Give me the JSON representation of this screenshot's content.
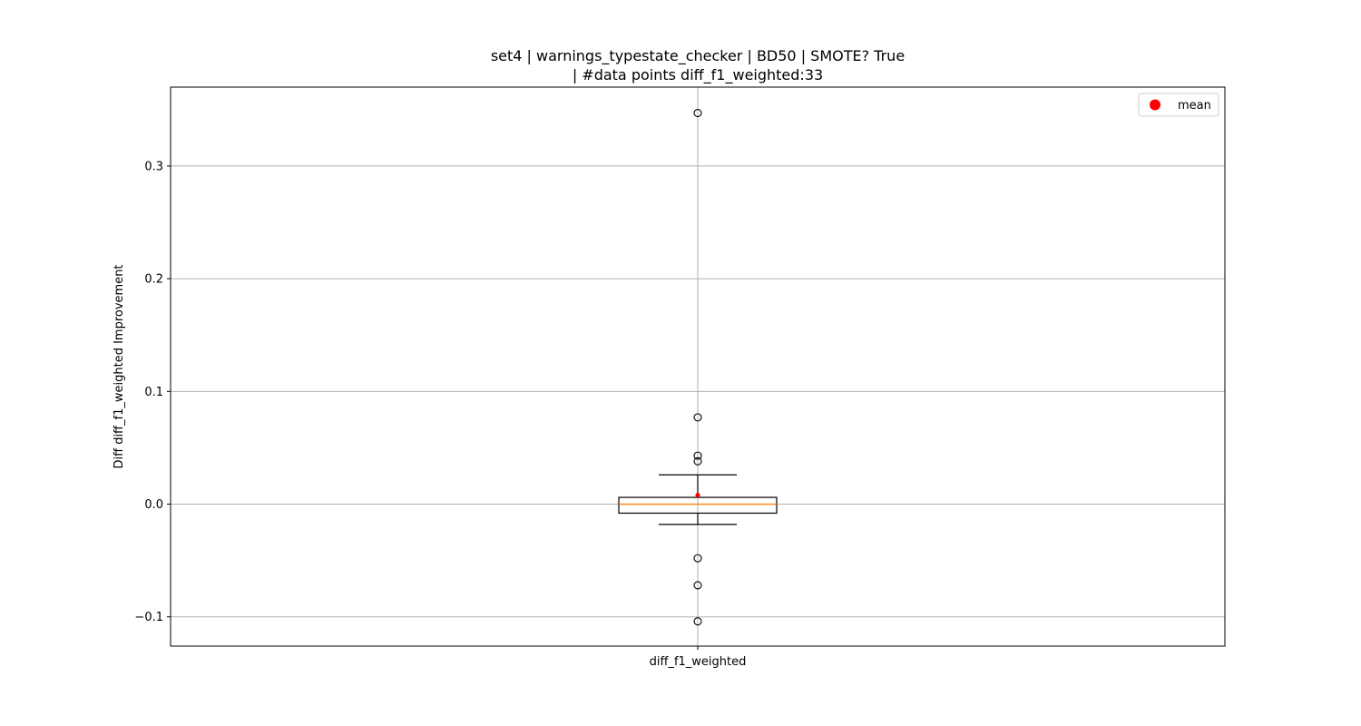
{
  "chart_data": {
    "type": "box",
    "title_line1": "set4 | warnings_typestate_checker | BD50 | SMOTE? True",
    "title_line2": "| #data points diff_f1_weighted:33",
    "xlabel": "",
    "ylabel": "Diff diff_f1_weighted Improvement",
    "categories": [
      "diff_f1_weighted"
    ],
    "ylim": [
      -0.126,
      0.37
    ],
    "yticks": [
      -0.1,
      0.0,
      0.1,
      0.2,
      0.3
    ],
    "ytick_labels": [
      "−0.1",
      "0.0",
      "0.1",
      "0.2",
      "0.3"
    ],
    "grid": true,
    "legend_position": "top-right",
    "legend": [
      {
        "label": "mean",
        "color": "#ff0000",
        "marker": "circle"
      }
    ],
    "box": {
      "whisker_low": -0.018,
      "q1": -0.008,
      "median": 0.0,
      "q3": 0.006,
      "whisker_high": 0.026,
      "mean": 0.008
    },
    "fliers": [
      0.347,
      0.077,
      0.043,
      0.038,
      -0.048,
      -0.072,
      -0.104
    ],
    "colors": {
      "median": "#ff7f0e",
      "mean": "#ff0000",
      "box": "#000000",
      "grid": "#b0b0b0"
    }
  }
}
